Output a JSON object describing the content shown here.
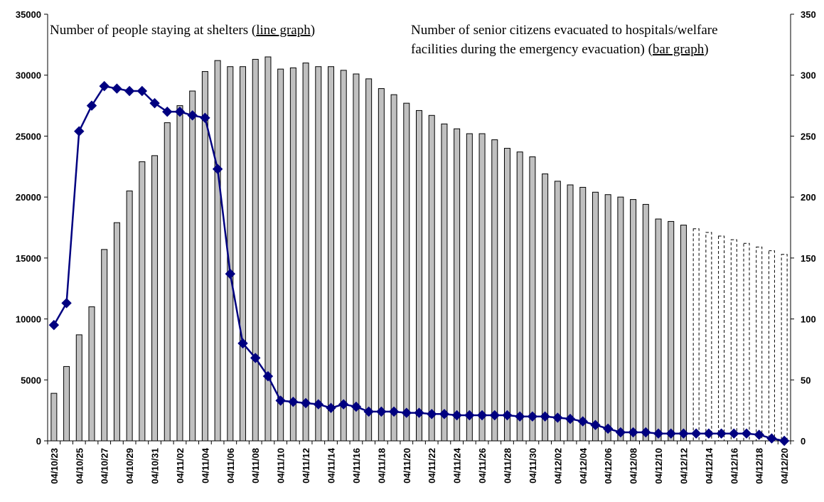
{
  "chart_data": {
    "type": "bar+line",
    "categories": [
      "04/10/23",
      "04/10/24",
      "04/10/25",
      "04/10/26",
      "04/10/27",
      "04/10/28",
      "04/10/29",
      "04/10/30",
      "04/10/31",
      "04/11/01",
      "04/11/02",
      "04/11/03",
      "04/11/04",
      "04/11/05",
      "04/11/06",
      "04/11/07",
      "04/11/08",
      "04/11/09",
      "04/11/10",
      "04/11/11",
      "04/11/12",
      "04/11/13",
      "04/11/14",
      "04/11/15",
      "04/11/16",
      "04/11/17",
      "04/11/18",
      "04/11/19",
      "04/11/20",
      "04/11/21",
      "04/11/22",
      "04/11/23",
      "04/11/24",
      "04/11/25",
      "04/11/26",
      "04/11/27",
      "04/11/28",
      "04/11/29",
      "04/11/30",
      "04/12/01",
      "04/12/02",
      "04/12/03",
      "04/12/04",
      "04/12/05",
      "04/12/06",
      "04/12/07",
      "04/12/08",
      "04/12/09",
      "04/12/10",
      "04/12/11",
      "04/12/12",
      "04/12/13",
      "04/12/14",
      "04/12/15",
      "04/12/16",
      "04/12/17",
      "04/12/18",
      "04/12/19",
      "04/12/20"
    ],
    "x_tick_labels": [
      "04/10/23",
      "04/10/25",
      "04/10/27",
      "04/10/29",
      "04/10/31",
      "04/11/02",
      "04/11/04",
      "04/11/06",
      "04/11/08",
      "04/11/10",
      "04/11/12",
      "04/11/14",
      "04/11/16",
      "04/11/18",
      "04/11/20",
      "04/11/22",
      "04/11/24",
      "04/11/26",
      "04/11/28",
      "04/11/30",
      "04/12/02",
      "04/12/04",
      "04/12/06",
      "04/12/08",
      "04/12/10",
      "04/12/12",
      "04/12/14",
      "04/12/16",
      "04/12/18",
      "04/12/20"
    ],
    "bar_series": {
      "label": "Number of senior citizens evacuated to hospitals/welfare facilities during the emergency evacuation) (bar graph)",
      "axis": "right",
      "values": [
        39,
        61,
        87,
        110,
        157,
        179,
        205,
        229,
        234,
        261,
        275,
        287,
        303,
        312,
        307,
        307,
        313,
        315,
        305,
        306,
        310,
        307,
        307,
        304,
        301,
        297,
        289,
        284,
        277,
        271,
        267,
        260,
        256,
        252,
        252,
        247,
        240,
        237,
        233,
        219,
        213,
        210,
        208,
        204,
        202,
        200,
        198,
        194,
        182,
        180,
        177,
        174,
        171,
        168,
        165,
        162,
        159,
        156,
        153
      ],
      "projected_from_index": 51,
      "color": "#c0c0c0"
    },
    "line_series": {
      "label": "Number of people staying at shelters (line graph)",
      "axis": "left",
      "values": [
        9500,
        11300,
        25400,
        27500,
        29100,
        28900,
        28700,
        28700,
        27700,
        27000,
        27000,
        26700,
        26500,
        22300,
        13700,
        8000,
        6800,
        5300,
        3300,
        3200,
        3100,
        3000,
        2700,
        3000,
        2800,
        2400,
        2400,
        2400,
        2300,
        2300,
        2200,
        2200,
        2100,
        2100,
        2100,
        2100,
        2100,
        2000,
        2000,
        2000,
        1900,
        1800,
        1600,
        1300,
        1000,
        700,
        700,
        700,
        600,
        600,
        600,
        600,
        600,
        600,
        600,
        600,
        500,
        200,
        0
      ],
      "color": "#000080"
    },
    "left_axis": {
      "ylim": [
        0,
        35000
      ],
      "ticks": [
        "0",
        "5000",
        "10000",
        "15000",
        "20000",
        "25000",
        "30000",
        "35000"
      ]
    },
    "right_axis": {
      "ylim": [
        0,
        350
      ],
      "ticks": [
        "0",
        "50",
        "100",
        "150",
        "200",
        "250",
        "300",
        "350"
      ]
    },
    "legend": {
      "line_text": "Number of people staying at shelters (",
      "line_link": "line graph",
      "line_end": ")",
      "bar_text_1": "Number of senior citizens evacuated to hospitals/welfare",
      "bar_text_2": "facilities during the emergency evacuation) (",
      "bar_link": "bar graph",
      "bar_end": ")"
    },
    "grid": false
  }
}
